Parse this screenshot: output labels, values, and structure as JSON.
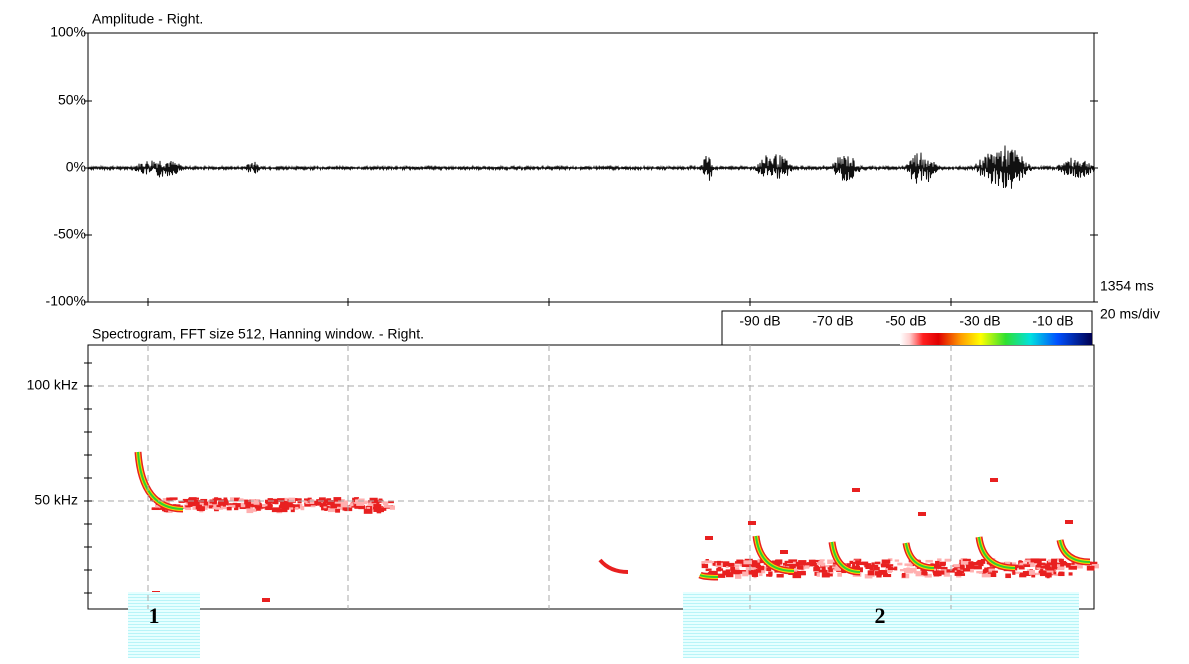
{
  "waveform": {
    "title": "Amplitude - Right.",
    "y_labels": [
      "100%",
      "50%",
      "0%",
      "-50%",
      "-100%"
    ],
    "duration": "1354 ms",
    "time_scale": "20 ms/div"
  },
  "spectrogram": {
    "title": "Spectrogram, FFT size 512, Hanning window. - Right.",
    "y_labels": [
      "100 kHz",
      "50 kHz"
    ],
    "db_labels": [
      "-90 dB",
      "-70 dB",
      "-50 dB",
      "-30 dB",
      "-10 dB"
    ]
  },
  "annotations": [
    "1",
    "2"
  ]
}
